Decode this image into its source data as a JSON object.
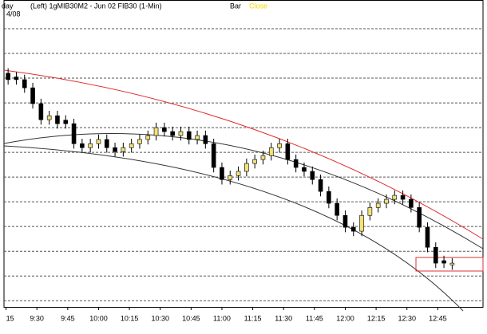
{
  "chart_data": {
    "type": "candlestick",
    "header": {
      "symbol_left": "day",
      "description": "(Left) 1gMIB30M2 - Jun 02 FIB30 (1-Min)",
      "style": "Bar",
      "field": "Close",
      "date": "4/08"
    },
    "x": [
      556,
      560,
      564,
      568,
      572,
      576,
      580,
      584,
      588,
      592,
      596,
      600,
      604,
      608,
      612,
      616,
      620,
      624,
      628,
      632,
      636,
      640,
      644,
      648,
      652,
      656,
      660,
      664,
      668,
      672,
      676,
      680,
      684,
      688,
      692,
      696,
      700,
      704,
      708,
      712,
      716,
      720,
      724,
      728,
      732,
      736,
      740,
      744,
      748,
      752,
      756,
      760,
      764,
      768,
      772
    ],
    "open": [
      9.2,
      9.05,
      8.94,
      8.61,
      7.97,
      7.32,
      7.48,
      7.3,
      7.16,
      6.35,
      6.19,
      6.35,
      6.52,
      6.19,
      6.03,
      6.19,
      6.35,
      6.52,
      6.68,
      7.0,
      6.84,
      6.68,
      6.84,
      6.52,
      6.68,
      6.35,
      5.39,
      4.9,
      5.06,
      5.23,
      5.55,
      5.71,
      5.87,
      6.19,
      6.35,
      5.71,
      5.39,
      5.23,
      4.9,
      4.42,
      3.94,
      3.45,
      2.97,
      2.81,
      3.45,
      3.77,
      3.94,
      4.1,
      4.26,
      4.1,
      3.77,
      2.97,
      2.16,
      1.62,
      1.45
    ],
    "high": [
      9.4,
      9.25,
      9.14,
      8.81,
      8.17,
      7.68,
      7.68,
      7.5,
      7.36,
      6.55,
      6.55,
      6.72,
      6.72,
      6.39,
      6.39,
      6.55,
      6.72,
      6.88,
      7.2,
      7.2,
      7.04,
      7.04,
      7.04,
      6.88,
      6.88,
      6.55,
      5.59,
      5.26,
      5.43,
      5.75,
      5.91,
      6.07,
      6.39,
      6.55,
      6.55,
      5.91,
      5.59,
      5.43,
      5.1,
      4.62,
      4.14,
      3.65,
      3.17,
      3.65,
      3.97,
      4.14,
      4.3,
      4.46,
      4.46,
      4.3,
      3.97,
      3.17,
      2.36,
      1.82,
      1.72
    ],
    "low": [
      8.74,
      8.74,
      8.41,
      7.77,
      7.12,
      7.12,
      6.96,
      6.96,
      6.15,
      5.99,
      5.99,
      6.15,
      5.99,
      5.83,
      5.83,
      5.99,
      6.15,
      6.32,
      6.48,
      6.64,
      6.48,
      6.48,
      6.32,
      6.32,
      6.15,
      5.19,
      4.7,
      4.7,
      4.86,
      5.03,
      5.35,
      5.51,
      5.67,
      5.99,
      5.51,
      5.19,
      5.03,
      4.7,
      4.22,
      3.74,
      3.25,
      2.77,
      2.61,
      2.61,
      3.25,
      3.57,
      3.74,
      3.9,
      3.9,
      3.57,
      2.77,
      1.96,
      1.32,
      1.32,
      1.25
    ],
    "close": [
      8.94,
      8.94,
      8.61,
      7.97,
      7.32,
      7.48,
      7.16,
      7.16,
      6.35,
      6.19,
      6.35,
      6.52,
      6.19,
      6.03,
      6.19,
      6.35,
      6.52,
      6.68,
      7.0,
      6.84,
      6.68,
      6.84,
      6.52,
      6.68,
      6.35,
      5.39,
      4.9,
      5.06,
      5.23,
      5.55,
      5.71,
      5.87,
      6.19,
      6.35,
      5.71,
      5.39,
      5.23,
      4.9,
      4.42,
      3.94,
      3.45,
      2.97,
      2.81,
      3.45,
      3.77,
      3.94,
      4.1,
      4.26,
      4.1,
      3.77,
      2.97,
      2.16,
      1.52,
      1.52,
      1.52
    ],
    "up_color": "#f2e27a",
    "down_color": "#000000",
    "xlim": [
      554,
      787
    ],
    "xticks": [
      {
        "value": 555,
        "label": "15"
      },
      {
        "value": 570,
        "label": "9:30"
      },
      {
        "value": 585,
        "label": "9:45"
      },
      {
        "value": 600,
        "label": "10:00"
      },
      {
        "value": 615,
        "label": "10:15"
      },
      {
        "value": 630,
        "label": "10:30"
      },
      {
        "value": 645,
        "label": "10:45"
      },
      {
        "value": 660,
        "label": "11:00"
      },
      {
        "value": 675,
        "label": "11:15"
      },
      {
        "value": 690,
        "label": "11:30"
      },
      {
        "value": 705,
        "label": "11:45"
      },
      {
        "value": 720,
        "label": "12:00"
      },
      {
        "value": 735,
        "label": "12:15"
      },
      {
        "value": 750,
        "label": "12:30"
      },
      {
        "value": 765,
        "label": "12:45"
      }
    ],
    "ylim": [
      -0.25,
      12
    ],
    "yticks": [
      0,
      1,
      2,
      3,
      4,
      5,
      6,
      7,
      8,
      9,
      10,
      11
    ],
    "grid": true
  }
}
